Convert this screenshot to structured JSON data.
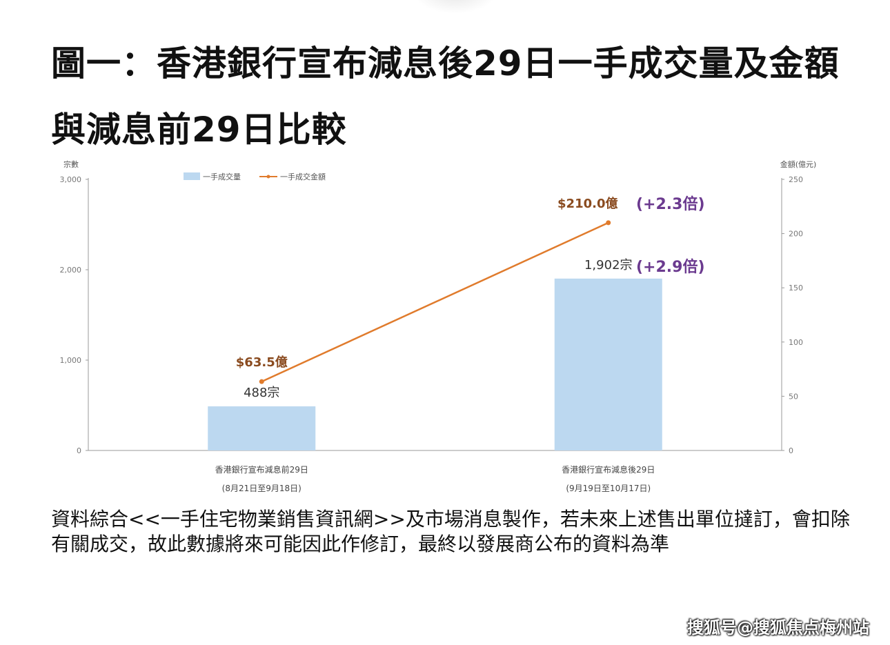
{
  "title": "圖一：香港銀行宣布減息後29日一手成交量及金額與減息前29日比較",
  "caption": "資料綜合<<一手住宅物業銷售資訊網>>及市場消息製作，若未來上述售出單位撻訂，會扣除有關成交，故此數據將來可能因此作修訂，最終以發展商公布的資料為準",
  "watermark": "搜狐号@搜狐焦点梅州站",
  "chart_data": {
    "type": "bar",
    "left_axis_label": "宗數",
    "right_axis_label": "金額(億元)",
    "left_ylim": [
      0,
      3000
    ],
    "right_ylim": [
      0,
      250
    ],
    "left_ticks": [
      "0",
      "1,000",
      "2,000",
      "3,000"
    ],
    "left_tick_values": [
      0,
      1000,
      2000,
      3000
    ],
    "right_ticks": [
      "0",
      "50",
      "100",
      "150",
      "200",
      "250"
    ],
    "right_tick_values": [
      0,
      50,
      100,
      150,
      200,
      250
    ],
    "categories": [
      {
        "line1": "香港銀行宣布減息前29日",
        "line2": "(8月21日至9月18日)"
      },
      {
        "line1": "香港銀行宣布減息後29日",
        "line2": "(9月19日至10月17日)"
      }
    ],
    "legend": [
      "一手成交量",
      "一手成交金額"
    ],
    "series": [
      {
        "name": "一手成交量",
        "kind": "bar",
        "axis": "left",
        "values": [
          488,
          1902
        ],
        "labels": [
          "488宗",
          "1,902宗"
        ]
      },
      {
        "name": "一手成交金額",
        "kind": "line",
        "axis": "right",
        "values": [
          63.5,
          210.0
        ],
        "labels": [
          "$63.5億",
          "$210.0億"
        ]
      }
    ],
    "annotations": [
      "(+2.9倍)",
      "(+2.3倍)"
    ],
    "colors": {
      "bar": "#bcd8f0",
      "line": "#e07b2c",
      "line_label": "#8a4b1f",
      "annotation": "#6b3a8f",
      "axis": "#999999",
      "text": "#555555"
    },
    "legend_position": "top-left"
  }
}
